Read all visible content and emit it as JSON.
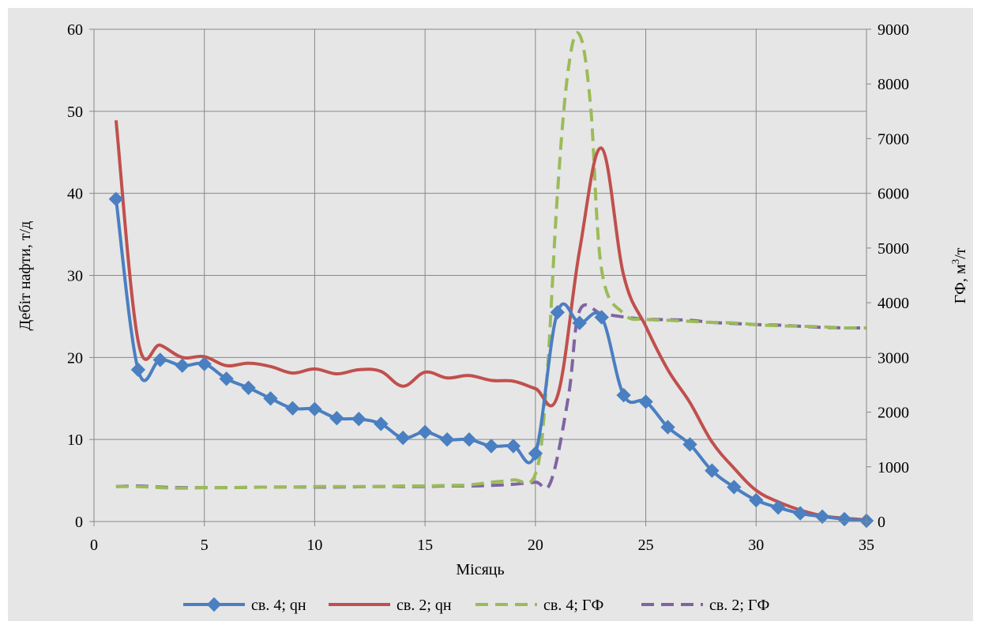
{
  "chart_data": {
    "type": "line",
    "xlabel": "Місяць",
    "ylabel_left": "Дебіт нафти, т/д",
    "ylabel_right_main": "ГФ, м",
    "ylabel_right_sup": "3",
    "ylabel_right_tail": "/т",
    "xlim": [
      0,
      35
    ],
    "ylim_left": [
      0,
      60
    ],
    "ylim_right": [
      0,
      9000
    ],
    "x_ticks": [
      "0",
      "5",
      "10",
      "15",
      "20",
      "25",
      "30",
      "35"
    ],
    "y_left_ticks": [
      "0",
      "10",
      "20",
      "30",
      "40",
      "50",
      "60"
    ],
    "y_right_ticks": [
      "0",
      "1000",
      "2000",
      "3000",
      "4000",
      "5000",
      "6000",
      "7000",
      "8000",
      "9000"
    ],
    "grid": true,
    "legend_position": "bottom",
    "colors": {
      "background": "#e6e6e6",
      "grid": "#888888",
      "s4_qn": "#4a7fc1",
      "s2_qn": "#c0504d",
      "s4_gf": "#9bbb59",
      "s2_gf": "#8064a2"
    },
    "series": [
      {
        "name": "св. 4; qн",
        "axis": "left",
        "style": "solid-markers",
        "x": [
          1,
          2,
          3,
          4,
          5,
          6,
          7,
          8,
          9,
          10,
          11,
          12,
          13,
          14,
          15,
          16,
          17,
          18,
          19,
          20,
          21,
          22,
          23,
          24,
          25,
          26,
          27,
          28,
          29,
          30,
          31,
          32,
          33,
          34,
          35
        ],
        "values": [
          39.3,
          18.5,
          19.7,
          19.0,
          19.2,
          17.4,
          16.3,
          15.0,
          13.8,
          13.7,
          12.6,
          12.5,
          11.9,
          10.2,
          10.9,
          10.0,
          10.0,
          9.2,
          9.2,
          8.3,
          25.5,
          24.2,
          24.9,
          15.4,
          14.6,
          11.5,
          9.4,
          6.2,
          4.2,
          2.6,
          1.7,
          1.0,
          0.6,
          0.3,
          0.1
        ]
      },
      {
        "name": "св. 2; qн",
        "axis": "left",
        "style": "solid",
        "x": [
          1,
          2,
          3,
          4,
          5,
          6,
          7,
          8,
          9,
          10,
          11,
          12,
          13,
          14,
          15,
          16,
          17,
          18,
          19,
          20,
          21,
          22,
          23,
          24,
          25,
          26,
          27,
          28,
          29,
          30,
          31,
          32,
          33,
          34,
          35
        ],
        "values": [
          48.9,
          22.0,
          21.5,
          20.0,
          20.1,
          19.0,
          19.3,
          18.9,
          18.1,
          18.6,
          18.0,
          18.5,
          18.3,
          16.5,
          18.2,
          17.5,
          17.8,
          17.2,
          17.1,
          16.2,
          15.3,
          33.0,
          45.5,
          30.0,
          23.8,
          18.5,
          14.5,
          9.7,
          6.5,
          3.8,
          2.4,
          1.4,
          0.7,
          0.4,
          0.2
        ]
      },
      {
        "name": "св. 4; ГФ",
        "axis": "right",
        "style": "dashed",
        "x": [
          1,
          2,
          3,
          4,
          5,
          6,
          7,
          8,
          9,
          10,
          11,
          12,
          13,
          14,
          15,
          16,
          17,
          18,
          19,
          20,
          20.5,
          21,
          21.5,
          22,
          22.5,
          23,
          24,
          25,
          26,
          27,
          28,
          29,
          30,
          31,
          32,
          33,
          34,
          35
        ],
        "values": [
          640,
          640,
          620,
          610,
          620,
          620,
          625,
          630,
          630,
          640,
          640,
          640,
          640,
          650,
          650,
          660,
          670,
          720,
          760,
          870,
          2500,
          6000,
          8300,
          8900,
          7600,
          4600,
          3800,
          3700,
          3680,
          3660,
          3640,
          3630,
          3600,
          3580,
          3570,
          3560,
          3540,
          3540
        ]
      },
      {
        "name": "св. 2; ГФ",
        "axis": "right",
        "style": "dashed",
        "x": [
          1,
          2,
          3,
          4,
          5,
          6,
          7,
          8,
          9,
          10,
          11,
          12,
          13,
          14,
          15,
          16,
          17,
          18,
          19,
          20,
          20.7,
          21.5,
          22,
          23,
          24,
          25,
          26,
          27,
          28,
          29,
          30,
          31,
          32,
          33,
          34,
          35
        ],
        "values": [
          640,
          650,
          630,
          620,
          620,
          620,
          625,
          630,
          630,
          630,
          630,
          635,
          640,
          640,
          640,
          650,
          650,
          660,
          680,
          720,
          730,
          2300,
          3850,
          3800,
          3740,
          3700,
          3690,
          3680,
          3640,
          3620,
          3600,
          3590,
          3570,
          3550,
          3540,
          3540
        ]
      }
    ]
  }
}
